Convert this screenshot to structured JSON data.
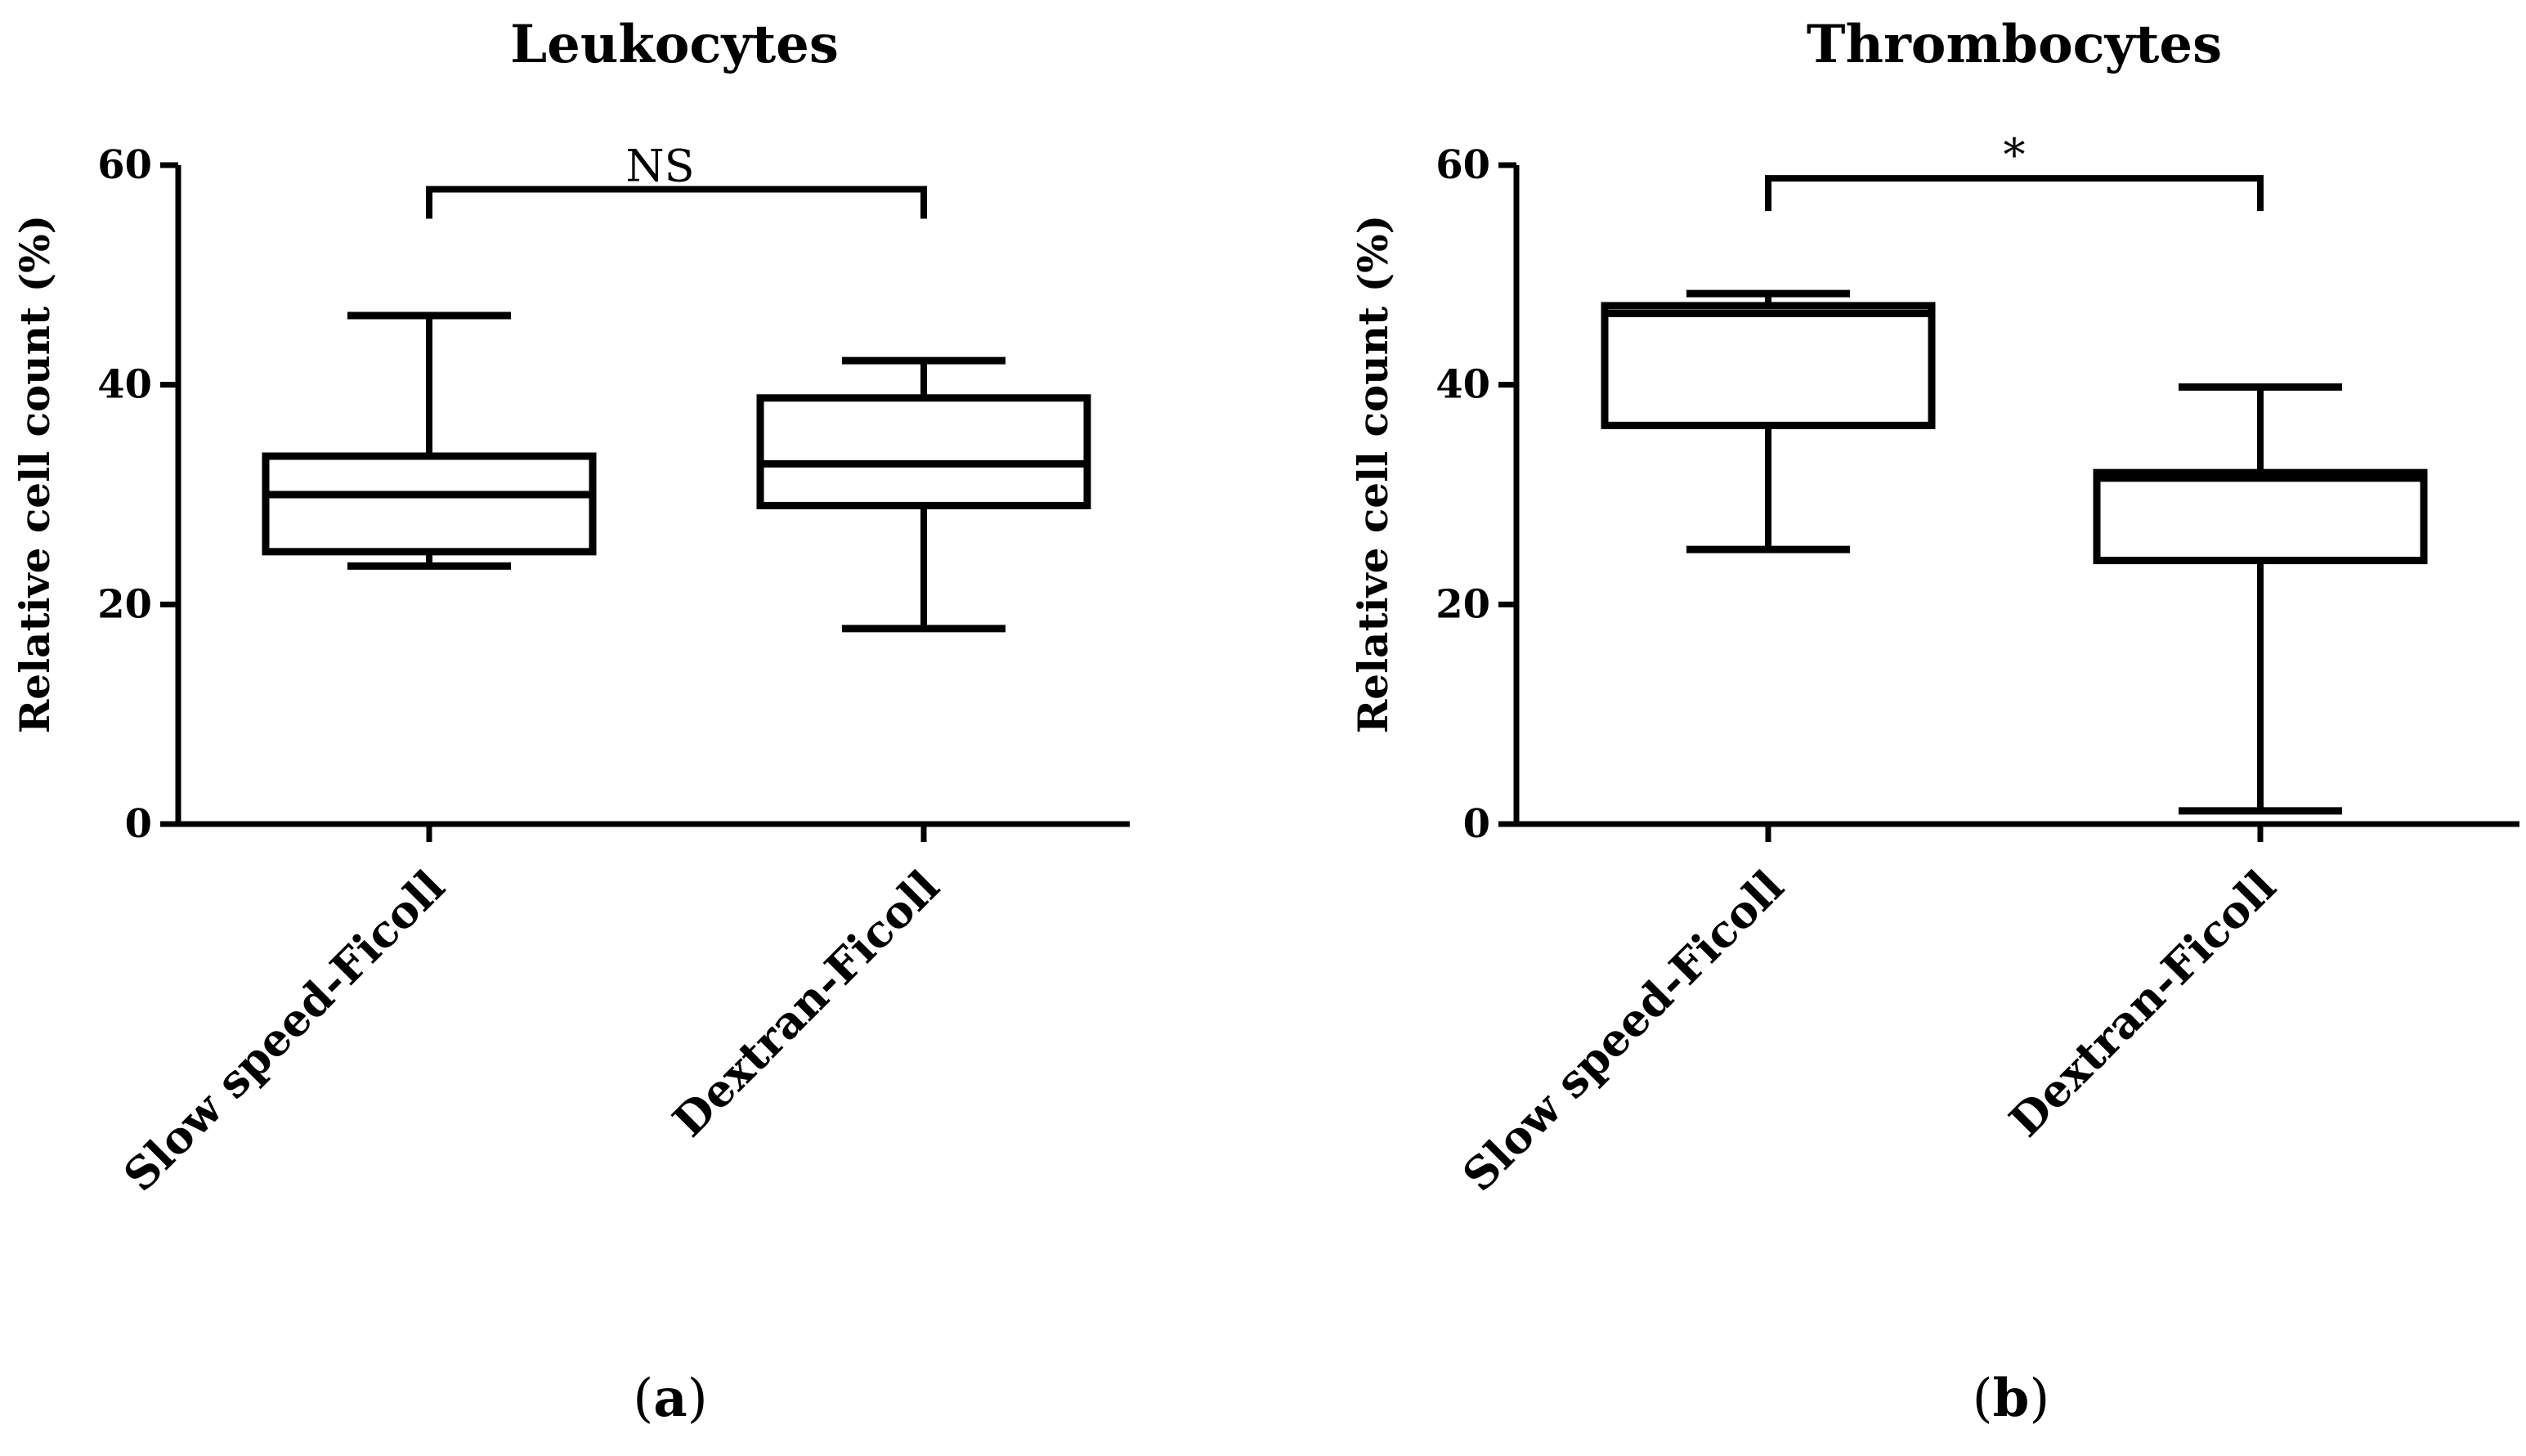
{
  "chart_data": [
    {
      "type": "box",
      "panel_label": "a",
      "title": "Leukocytes",
      "ylabel": "Relative cell count (%)",
      "xlabel": "",
      "ylim": [
        0,
        60
      ],
      "yticks": [
        0,
        20,
        40,
        60
      ],
      "categories": [
        "Slow speed-Ficoll",
        "Dextran-Ficoll"
      ],
      "boxes": [
        {
          "name": "Slow speed-Ficoll",
          "min": 23.5,
          "q1": 24.8,
          "median": 30.0,
          "q3": 33.5,
          "max": 46.3
        },
        {
          "name": "Dextran-Ficoll",
          "min": 17.8,
          "q1": 29.0,
          "median": 32.8,
          "q3": 38.8,
          "max": 42.2
        }
      ],
      "significance": {
        "label": "NS",
        "between": [
          "Slow speed-Ficoll",
          "Dextran-Ficoll"
        ],
        "level": 57.8
      }
    },
    {
      "type": "box",
      "panel_label": "b",
      "title": "Thrombocytes",
      "ylabel": "Relative cell count (%)",
      "xlabel": "",
      "ylim": [
        0,
        60
      ],
      "yticks": [
        0,
        20,
        40,
        60
      ],
      "categories": [
        "Slow speed-Ficoll",
        "Dextran-Ficoll"
      ],
      "boxes": [
        {
          "name": "Slow speed-Ficoll",
          "min": 25.0,
          "q1": 36.3,
          "median": 46.5,
          "q3": 47.2,
          "max": 48.3
        },
        {
          "name": "Dextran-Ficoll",
          "min": 1.2,
          "q1": 24.0,
          "median": 31.5,
          "q3": 32.0,
          "max": 39.8
        }
      ],
      "significance": {
        "label": "*",
        "between": [
          "Slow speed-Ficoll",
          "Dextran-Ficoll"
        ],
        "level": 58.8
      }
    }
  ]
}
